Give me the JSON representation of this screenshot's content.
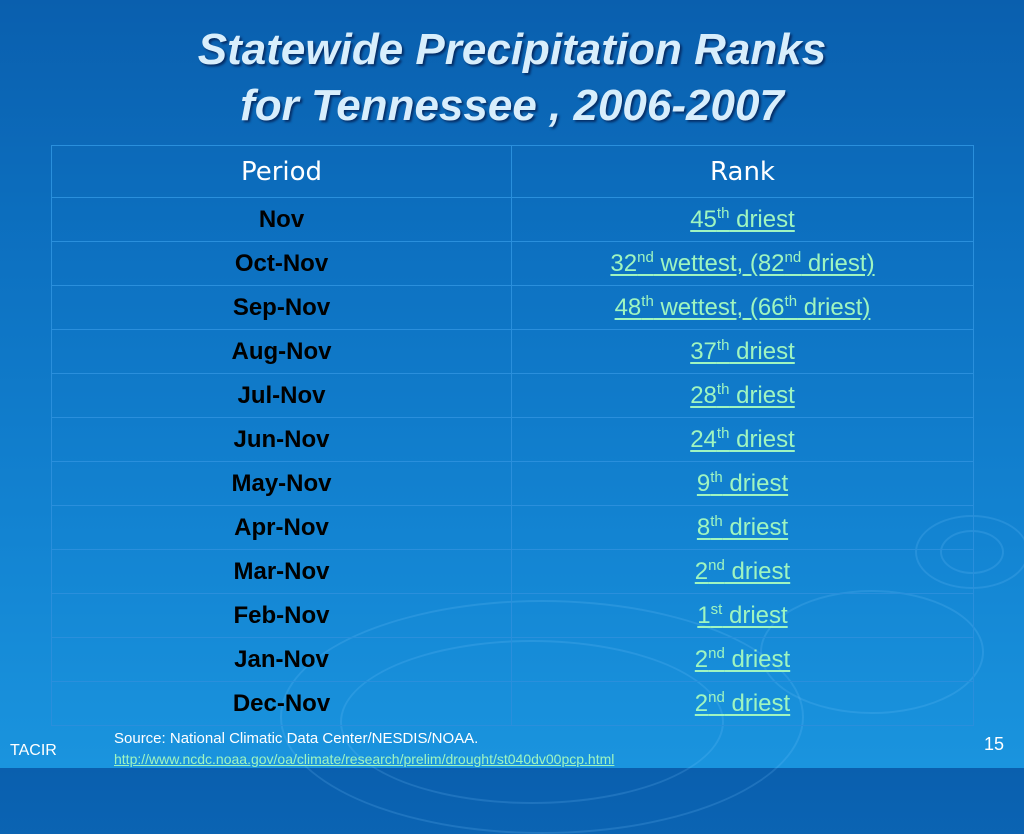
{
  "title_line1": "Statewide Precipitation Ranks",
  "title_line2": "for Tennessee , 2006-2007",
  "table": {
    "headers": [
      "Period",
      "Rank"
    ],
    "rows": [
      {
        "period": "Nov",
        "rank": [
          [
            "45",
            "th",
            " driest"
          ]
        ]
      },
      {
        "period": "Oct-Nov",
        "rank": [
          [
            "32",
            "nd",
            " wettest, (82"
          ],
          [
            "",
            "nd",
            " driest)"
          ]
        ]
      },
      {
        "period": "Sep-Nov",
        "rank": [
          [
            "48",
            "th",
            " wettest, (66"
          ],
          [
            "",
            "th",
            " driest)"
          ]
        ]
      },
      {
        "period": "Aug-Nov",
        "rank": [
          [
            "37",
            "th",
            " driest"
          ]
        ]
      },
      {
        "period": "Jul-Nov",
        "rank": [
          [
            "28",
            "th",
            " driest"
          ]
        ]
      },
      {
        "period": "Jun-Nov",
        "rank": [
          [
            "24",
            "th",
            " driest"
          ]
        ]
      },
      {
        "period": "May-Nov",
        "rank": [
          [
            "9",
            "th",
            " driest"
          ]
        ]
      },
      {
        "period": "Apr-Nov",
        "rank": [
          [
            "8",
            "th",
            " driest"
          ]
        ]
      },
      {
        "period": "Mar-Nov",
        "rank": [
          [
            "2",
            "nd",
            " driest"
          ]
        ]
      },
      {
        "period": "Feb-Nov",
        "rank": [
          [
            "1",
            "st",
            " driest"
          ]
        ]
      },
      {
        "period": "Jan-Nov",
        "rank": [
          [
            "2",
            "nd",
            " driest"
          ]
        ]
      },
      {
        "period": "Dec-Nov",
        "rank": [
          [
            "2",
            "nd",
            " driest"
          ]
        ]
      }
    ]
  },
  "source_label": "Source: National Climatic Data Center/NESDIS/NOAA.",
  "source_url": "http://www.ncdc.noaa.gov/oa/climate/research/prelim/drought/st040dv00pcp.html",
  "footer_left": "TACIR",
  "page_number": "15",
  "colors": {
    "title": "#d8eefc",
    "link": "#9ff5c0",
    "period_text": "#000000",
    "background": "#0d72c2"
  }
}
